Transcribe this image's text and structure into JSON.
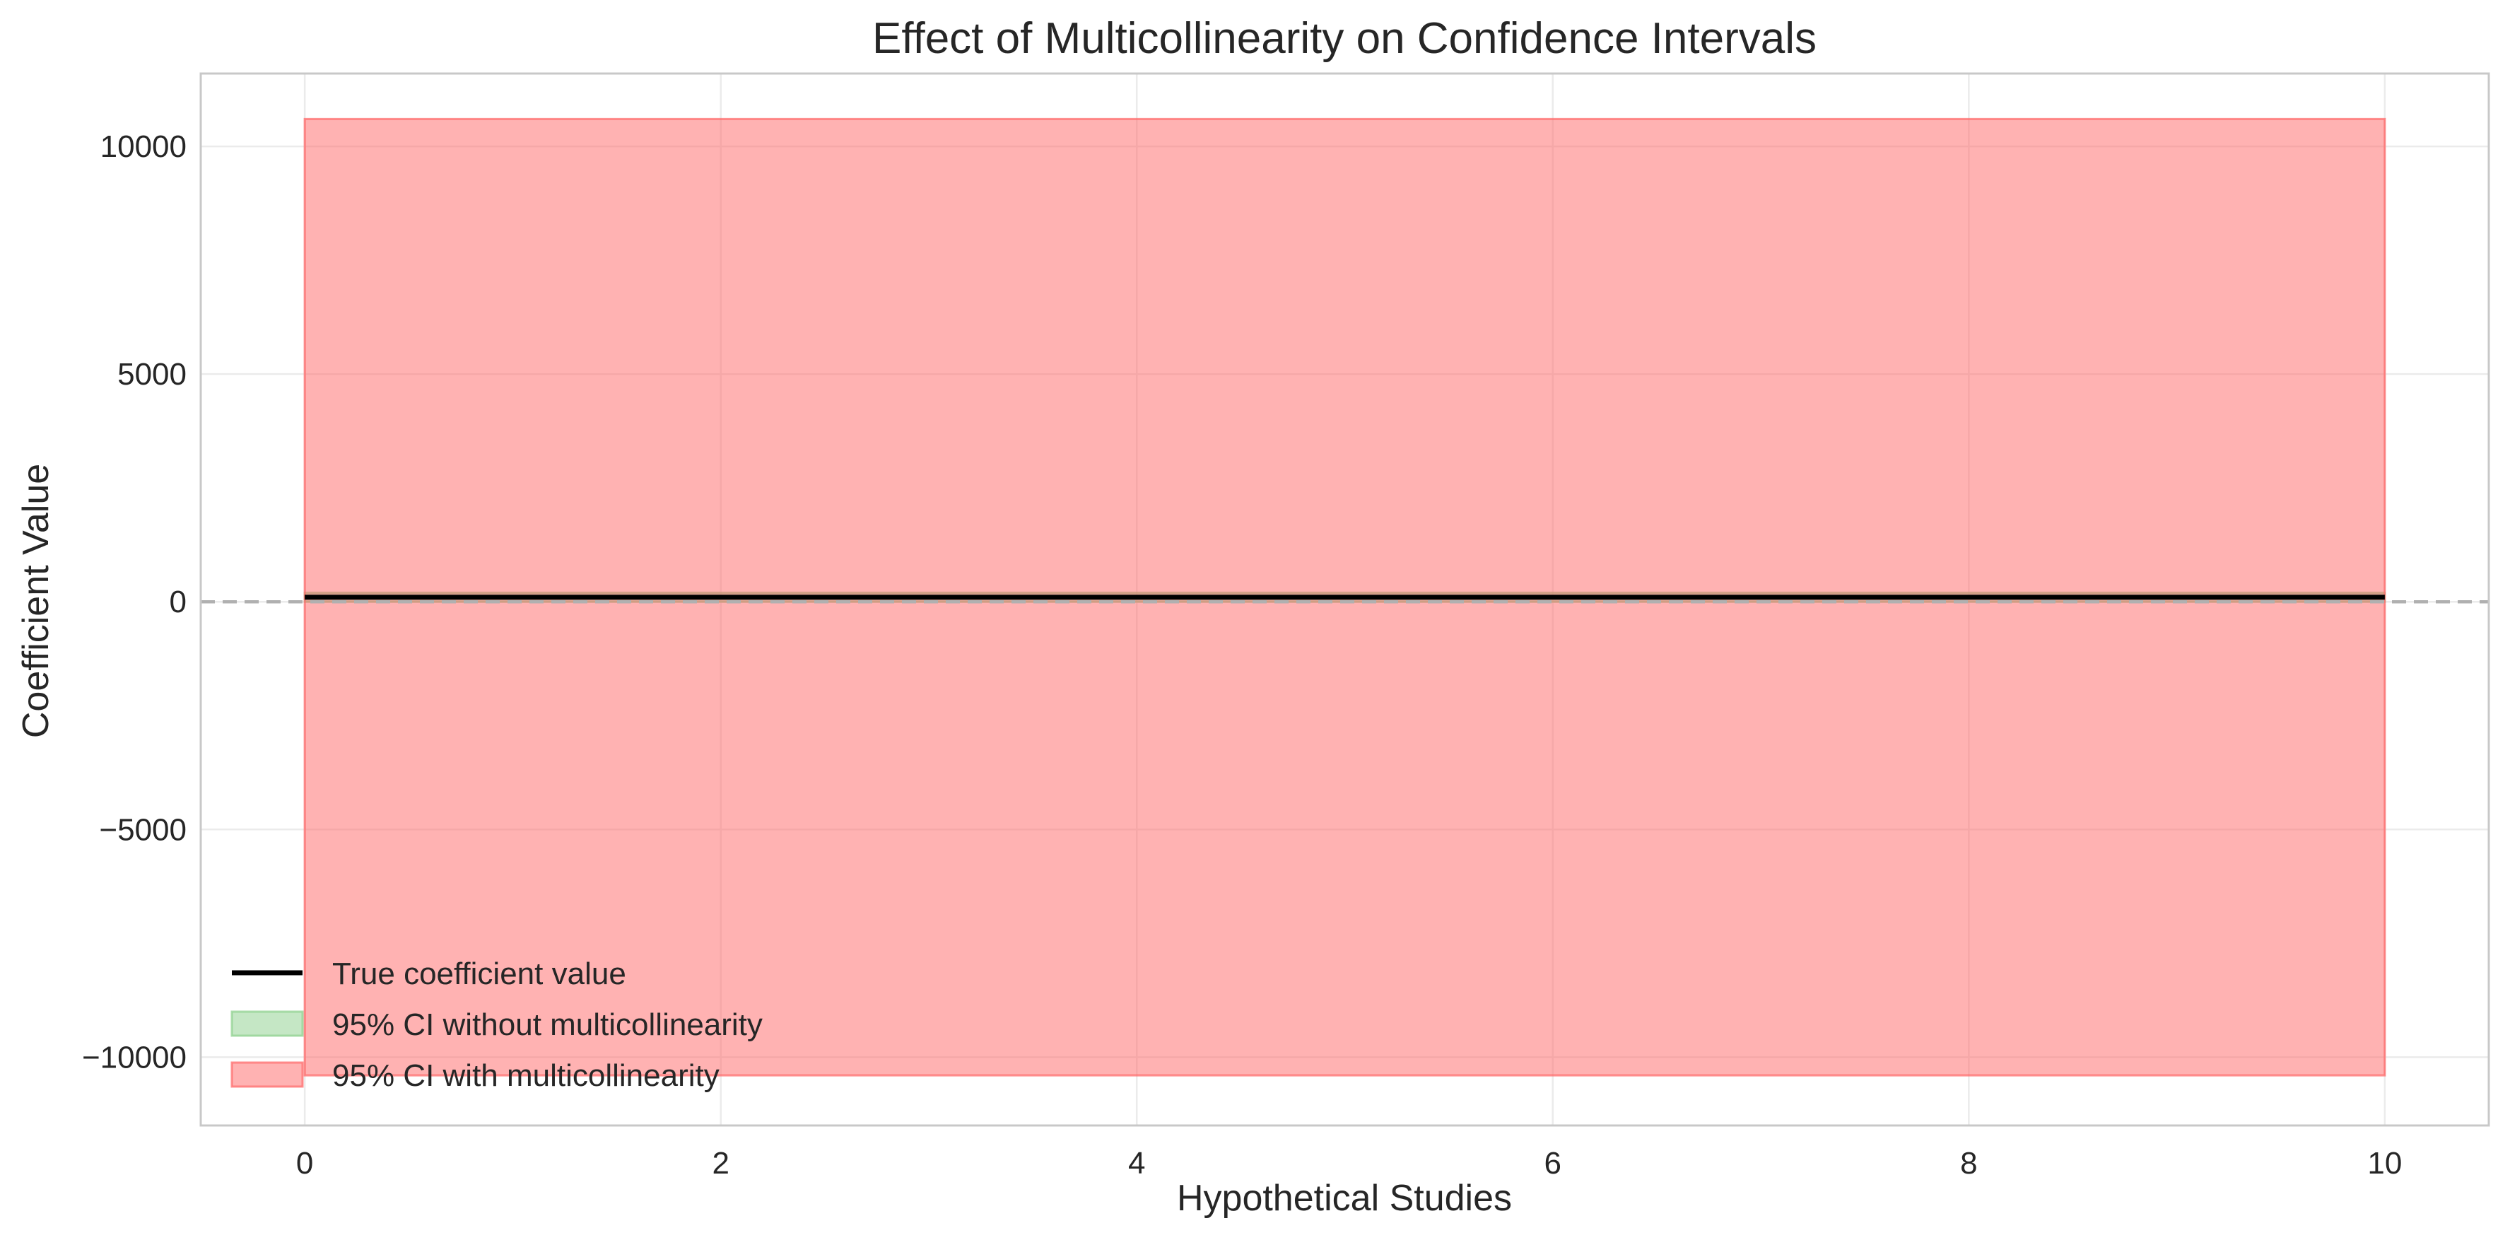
{
  "chart_data": {
    "type": "area",
    "title": "Effect of Multicollinearity on Confidence Intervals",
    "xlabel": "Hypothetical Studies",
    "ylabel": "Coefficient Value",
    "xlim": [
      -0.5,
      10.5
    ],
    "ylim": [
      -11500,
      11600
    ],
    "x_ticks": [
      0,
      2,
      4,
      6,
      8,
      10
    ],
    "y_ticks": [
      -10000,
      -5000,
      0,
      5000,
      10000
    ],
    "x_tick_labels": [
      "0",
      "2",
      "4",
      "6",
      "8",
      "10"
    ],
    "y_tick_labels": [
      "−10000",
      "−5000",
      "0",
      "5000",
      "10000"
    ],
    "grid": true,
    "legend_position": "lower-left",
    "reference_line": {
      "y": 0,
      "style": "dashed",
      "color": "#b0b0b0"
    },
    "series": [
      {
        "name": "True coefficient value",
        "kind": "line",
        "color": "#000000",
        "x": [
          0,
          10
        ],
        "y": [
          100,
          100
        ]
      },
      {
        "name": "95% CI without multicollinearity",
        "kind": "band",
        "color": "#8fd18f",
        "x": [
          0,
          10
        ],
        "lower": [
          0,
          0
        ],
        "upper": [
          200,
          200
        ]
      },
      {
        "name": "95% CI with multicollinearity",
        "kind": "band",
        "color": "#ff6b6b",
        "x": [
          0,
          10
        ],
        "lower": [
          -10400,
          -10400
        ],
        "upper": [
          10600,
          10600
        ]
      }
    ]
  }
}
